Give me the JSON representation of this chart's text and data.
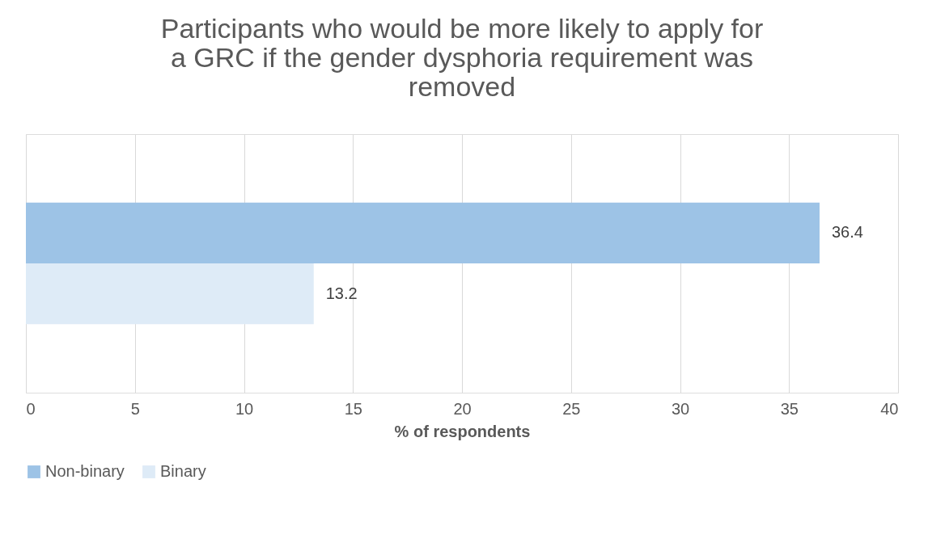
{
  "chart_data": {
    "type": "bar",
    "orientation": "horizontal",
    "title": "Participants who would be more likely to apply for a GRC if the gender dysphoria requirement was removed",
    "xlabel": "% of respondents",
    "categories": [
      null
    ],
    "series": [
      {
        "name": "Non-binary",
        "color": "#9dc3e6",
        "values": [
          36.4
        ]
      },
      {
        "name": "Binary",
        "color": "#deebf7",
        "values": [
          13.2
        ]
      }
    ],
    "xlim": [
      0,
      40
    ],
    "xticks": [
      0,
      5,
      10,
      15,
      20,
      25,
      30,
      35,
      40
    ],
    "grid": "x",
    "legend": "bottom",
    "data_labels": true
  }
}
